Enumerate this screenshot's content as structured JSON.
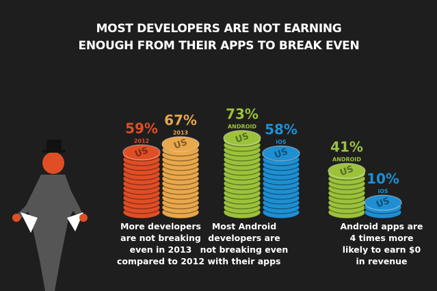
{
  "title": "MOST DEVELOPERS ARE NOT EARNING ENOUGH FROM THEIR APPS TO BREAK EVEN",
  "coin_text": "US",
  "chart_data": [
    {
      "type": "bar",
      "categories": [
        "2012",
        "2013"
      ],
      "values": [
        59,
        67
      ],
      "value_labels": [
        "59%",
        "67%"
      ],
      "colors": [
        "#e04e26",
        "#e9a84b"
      ],
      "caption": "More developers are not breaking even in 2013 compared to 2012"
    },
    {
      "type": "bar",
      "categories": [
        "ANDROID",
        "iOS"
      ],
      "values": [
        73,
        58
      ],
      "value_labels": [
        "73%",
        "58%"
      ],
      "colors": [
        "#9cc23c",
        "#1f8fd2"
      ],
      "caption": "Most Android developers are not breaking even with their apps"
    },
    {
      "type": "bar",
      "categories": [
        "ANDROID",
        "iOS"
      ],
      "values": [
        41,
        10
      ],
      "value_labels": [
        "41%",
        "10%"
      ],
      "colors": [
        "#9cc23c",
        "#1f8fd2"
      ],
      "caption": "Android apps are 4 times more likely to earn $0 in revenue"
    }
  ]
}
